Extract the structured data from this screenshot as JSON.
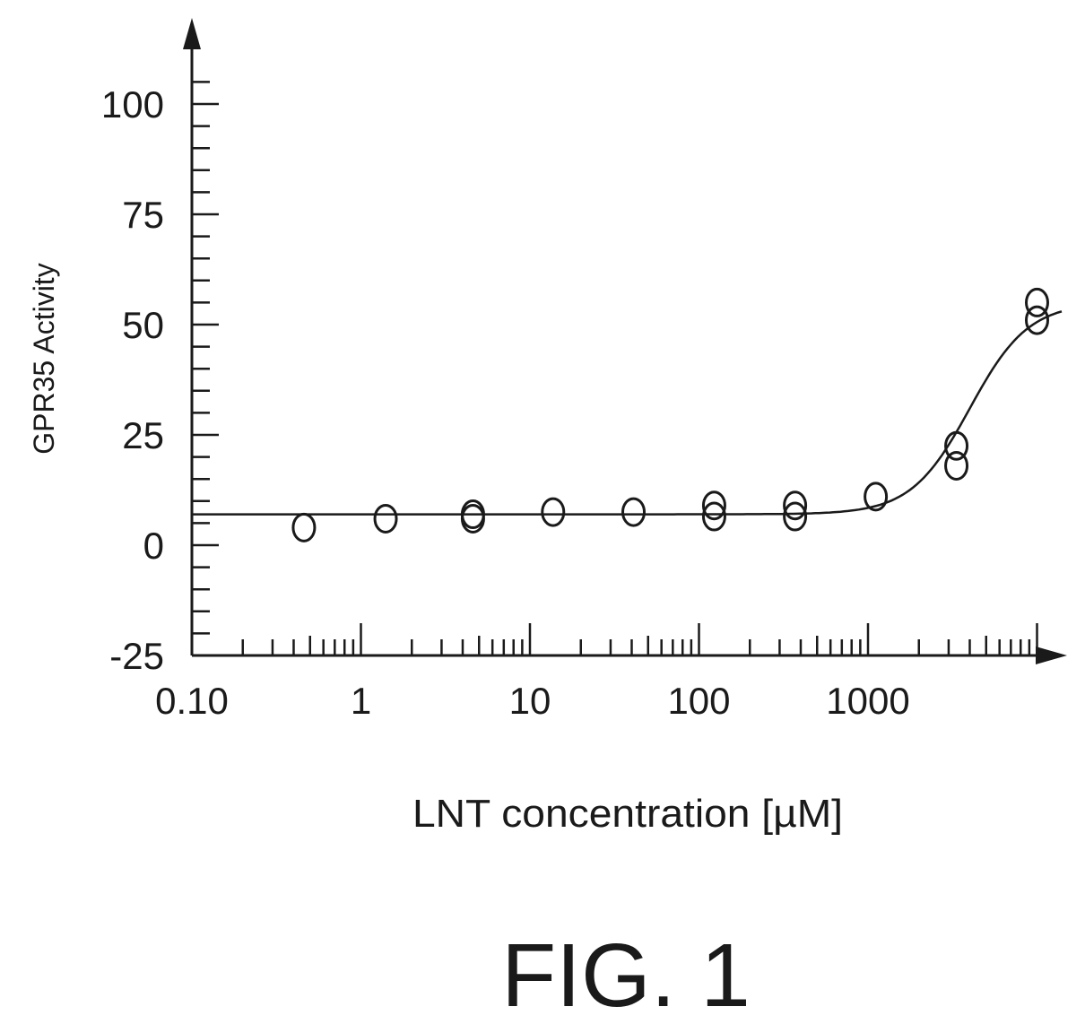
{
  "chart_data": {
    "type": "scatter",
    "title": "",
    "xlabel": "LNT concentration [µM]",
    "ylabel": "GPR35 Activity",
    "xscale": "log",
    "xlim": [
      0.1,
      10000
    ],
    "ylim": [
      -25,
      100
    ],
    "x_tick_labels": [
      "0.10",
      "1",
      "10",
      "100",
      "1000"
    ],
    "x_ticks": [
      0.1,
      1,
      10,
      100,
      1000
    ],
    "y_tick_labels": [
      "-25",
      "0",
      "25",
      "50",
      "75",
      "100"
    ],
    "y_ticks": [
      -25,
      0,
      25,
      50,
      75,
      100
    ],
    "grid": false,
    "marker": "open-circle",
    "line_color": "#1a1a1a",
    "points": [
      {
        "x": 0.46,
        "y": 4
      },
      {
        "x": 1.4,
        "y": 6
      },
      {
        "x": 4.6,
        "y": 6
      },
      {
        "x": 4.6,
        "y": 7
      },
      {
        "x": 13.7,
        "y": 7.5
      },
      {
        "x": 41,
        "y": 7.5
      },
      {
        "x": 123,
        "y": 6.5
      },
      {
        "x": 123,
        "y": 9
      },
      {
        "x": 370,
        "y": 6.5
      },
      {
        "x": 370,
        "y": 9
      },
      {
        "x": 1111,
        "y": 11
      },
      {
        "x": 3333,
        "y": 18
      },
      {
        "x": 3333,
        "y": 22.5
      },
      {
        "x": 10000,
        "y": 51
      },
      {
        "x": 10000,
        "y": 55
      }
    ],
    "fit_curve": {
      "type": "sigmoid",
      "bottom": 7,
      "top": 55,
      "ec50": 4000,
      "hill": 2.5,
      "x_range": [
        0.1,
        14000
      ]
    }
  },
  "figure_label": "FIG. 1"
}
